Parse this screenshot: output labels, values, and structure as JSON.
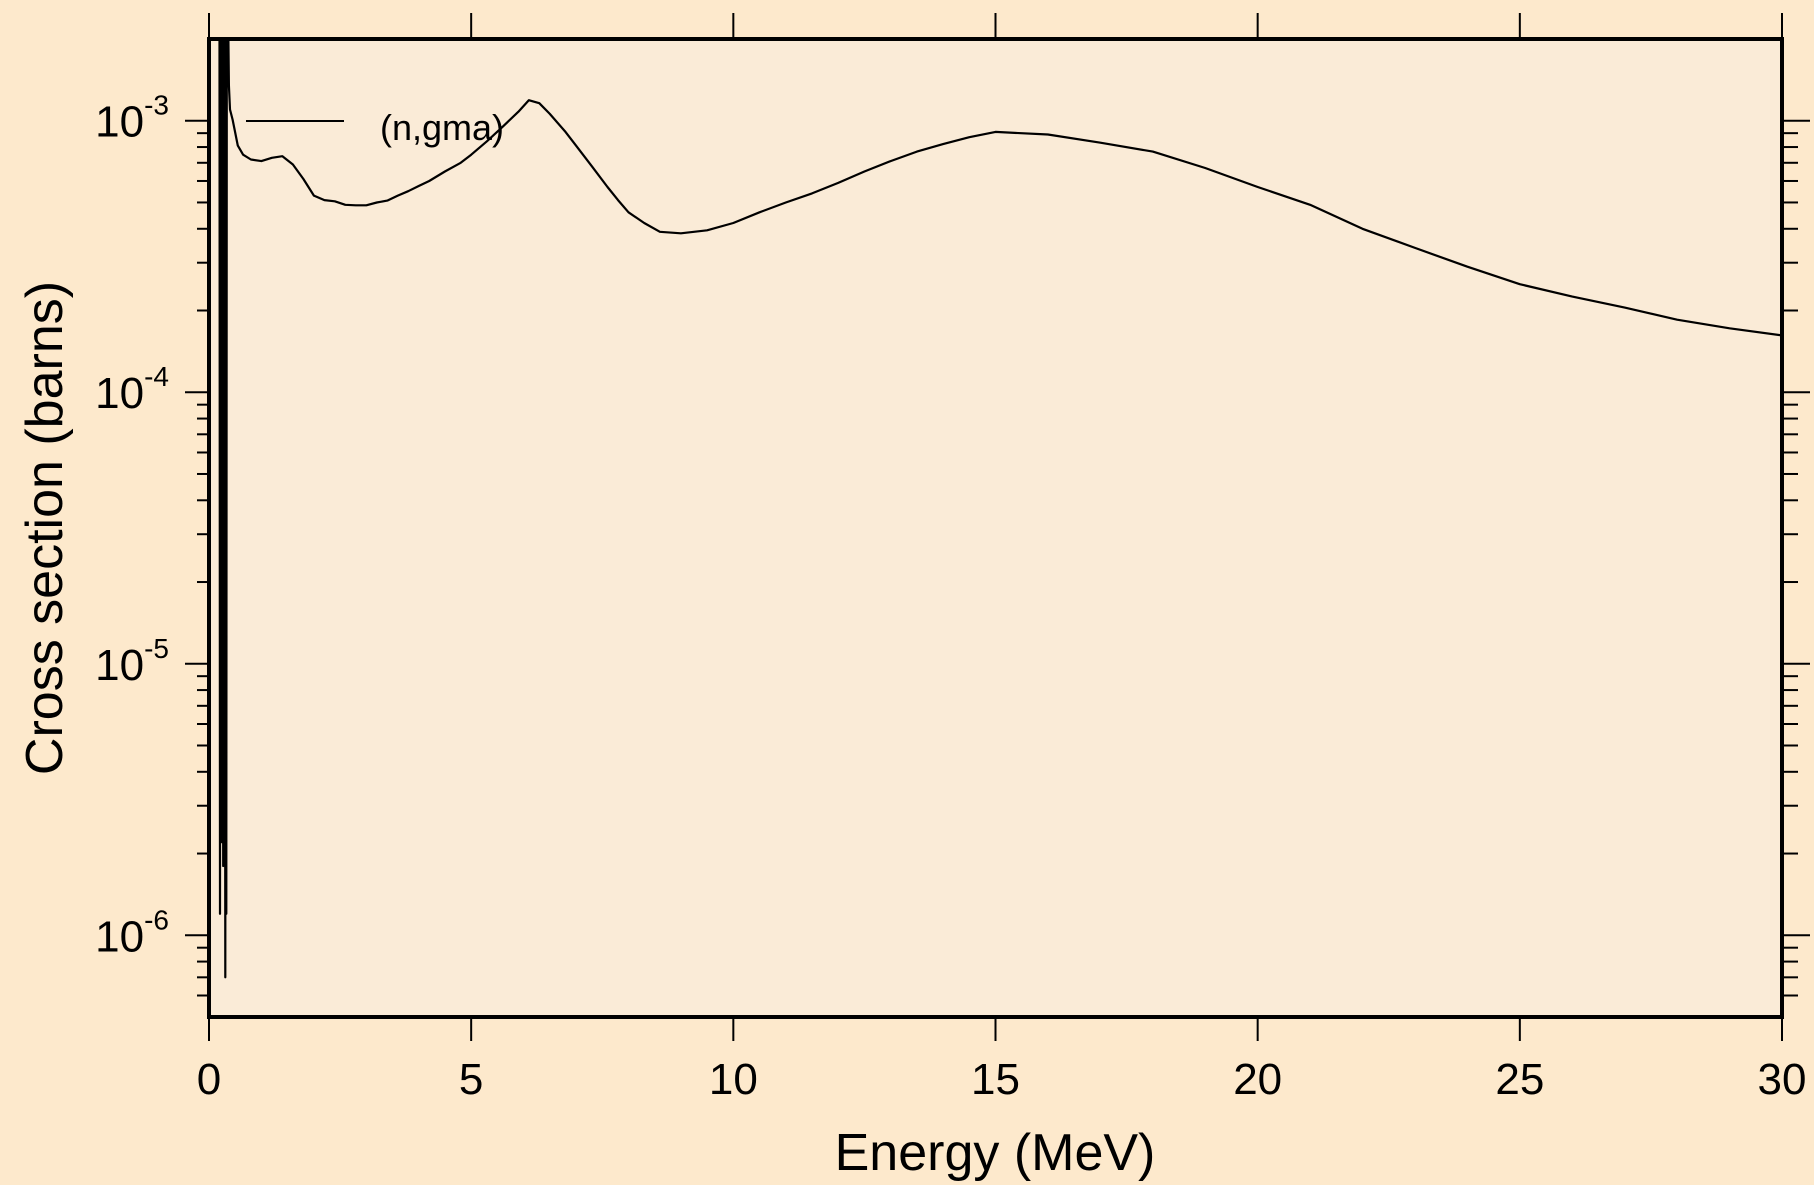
{
  "colors": {
    "page_background": "#fde9cc",
    "plot_background": "#faebd7",
    "line": "#000000"
  },
  "chart_data": {
    "type": "line",
    "xlabel": "Energy (MeV)",
    "ylabel": "Cross section (barns)",
    "xlim": [
      0,
      30
    ],
    "ylim": [
      5e-07,
      0.002
    ],
    "yscale": "log",
    "grid": false,
    "legend_position": "top-left",
    "x_ticks": [
      0,
      5,
      10,
      15,
      20,
      25,
      30
    ],
    "x_tick_labels": [
      "0",
      "5",
      "10",
      "15",
      "20",
      "25",
      "30"
    ],
    "y_ticks": [
      1e-06,
      1e-05,
      0.0001,
      0.001
    ],
    "y_tick_labels": [
      {
        "base": "10",
        "exp": "-6"
      },
      {
        "base": "10",
        "exp": "-5"
      },
      {
        "base": "10",
        "exp": "-4"
      },
      {
        "base": "10",
        "exp": "-3"
      }
    ],
    "series": [
      {
        "name": "(n,gma)",
        "x": [
          0.2,
          0.21,
          0.22,
          0.23,
          0.24,
          0.25,
          0.26,
          0.27,
          0.28,
          0.29,
          0.3,
          0.31,
          0.32,
          0.33,
          0.34,
          0.35,
          0.36,
          0.37,
          0.38,
          0.4,
          0.45,
          0.55,
          0.65,
          0.8,
          1.0,
          1.2,
          1.4,
          1.6,
          1.8,
          2.0,
          2.2,
          2.4,
          2.6,
          2.8,
          3.0,
          3.2,
          3.4,
          3.6,
          3.8,
          4.0,
          4.2,
          4.5,
          4.8,
          5.0,
          5.3,
          5.6,
          5.9,
          6.1,
          6.3,
          6.5,
          6.8,
          7.0,
          7.3,
          7.6,
          7.8,
          8.0,
          8.3,
          8.6,
          9.0,
          9.5,
          10.0,
          10.5,
          11.0,
          11.5,
          12.0,
          12.5,
          13.0,
          13.5,
          14.0,
          14.5,
          15.0,
          16.0,
          17.0,
          18.0,
          19.0,
          20.0,
          21.0,
          22.0,
          23.0,
          24.0,
          25.0,
          26.0,
          27.0,
          28.0,
          29.0,
          30.0
        ],
        "y": [
          0.002,
          1.2e-06,
          0.002,
          2.6e-06,
          0.002,
          2.2e-06,
          0.002,
          1.8e-06,
          0.002,
          2.5e-06,
          0.002,
          7e-07,
          0.002,
          1.2e-06,
          0.002,
          0.002,
          0.002,
          0.002,
          0.00135,
          0.0011,
          0.00101,
          0.00081,
          0.00075,
          0.00072,
          0.00071,
          0.00073,
          0.00074,
          0.00069,
          0.00061,
          0.00053,
          0.00051,
          0.000505,
          0.00049,
          0.000488,
          0.000488,
          0.0005,
          0.000508,
          0.00053,
          0.00055,
          0.000575,
          0.0006,
          0.00065,
          0.0007,
          0.00075,
          0.00084,
          0.00095,
          0.00108,
          0.00119,
          0.00116,
          0.00106,
          0.00091,
          0.00081,
          0.00068,
          0.00057,
          0.00051,
          0.00046,
          0.00042,
          0.00039,
          0.000385,
          0.000395,
          0.00042,
          0.00046,
          0.0005,
          0.00054,
          0.00059,
          0.00065,
          0.00071,
          0.00077,
          0.00082,
          0.00087,
          0.00091,
          0.00089,
          0.00083,
          0.00077,
          0.00067,
          0.00057,
          0.00049,
          0.0004,
          0.00034,
          0.00029,
          0.00025,
          0.000225,
          0.000205,
          0.000185,
          0.000172,
          0.000162
        ]
      }
    ]
  }
}
